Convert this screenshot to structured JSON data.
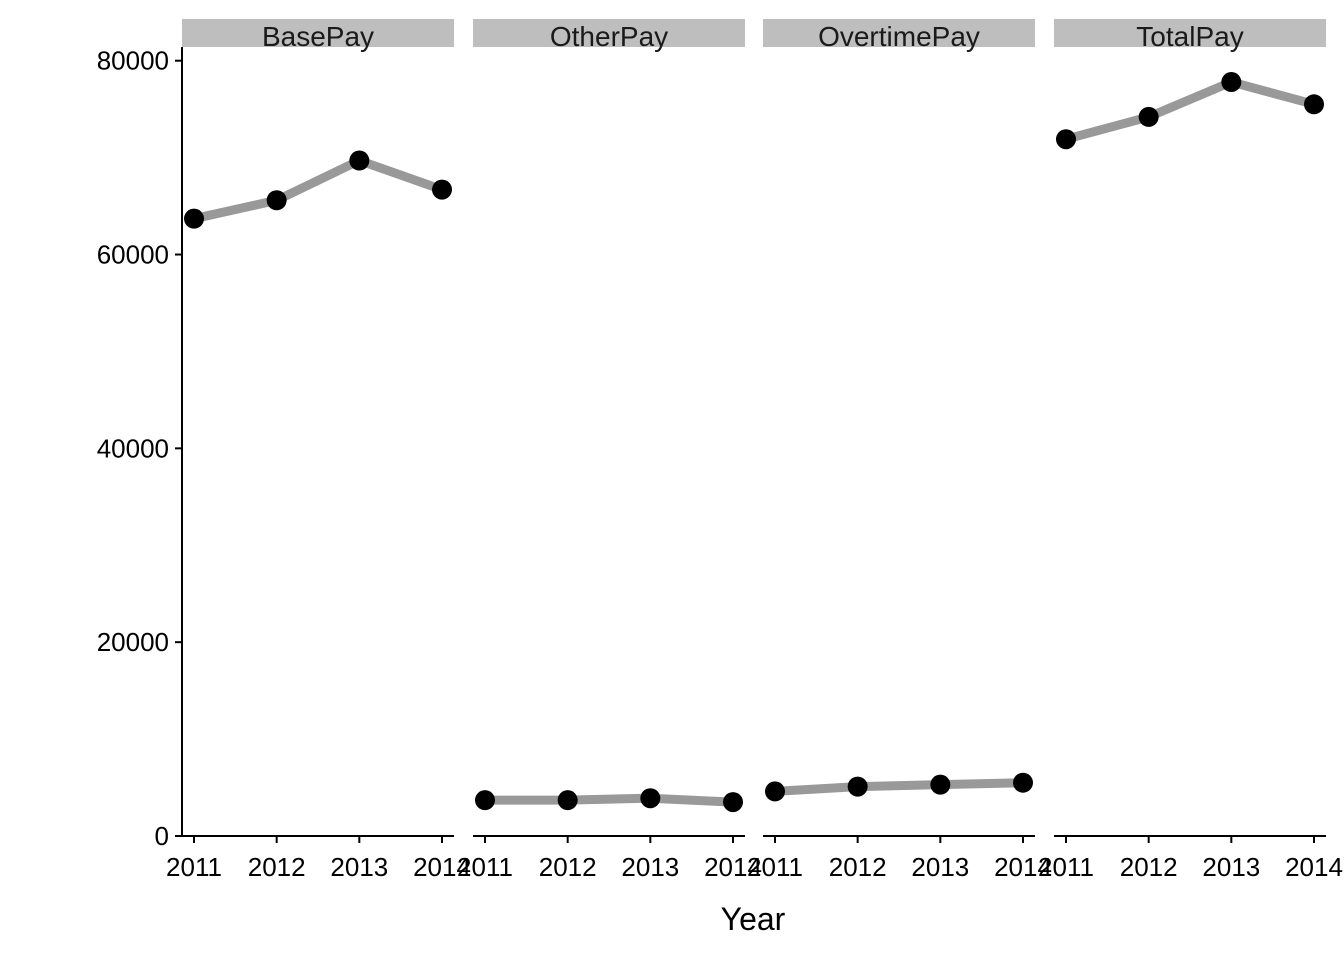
{
  "chart_data": {
    "type": "line",
    "title": "",
    "xlabel": "Year",
    "ylabel": "",
    "ylim": [
      0,
      80000
    ],
    "y_ticks": [
      0,
      20000,
      40000,
      60000,
      80000
    ],
    "y_tick_labels": [
      "0",
      "20000",
      "40000",
      "60000",
      "80000"
    ],
    "x": [
      2011,
      2012,
      2013,
      2014
    ],
    "x_tick_labels": [
      "2011",
      "2012",
      "2013",
      "2014"
    ],
    "grid": false,
    "legend": "none",
    "facets": [
      {
        "label": "BasePay",
        "values": [
          63700,
          65600,
          69700,
          66700
        ]
      },
      {
        "label": "OtherPay",
        "values": [
          3700,
          3700,
          3900,
          3500
        ]
      },
      {
        "label": "OvertimePay",
        "values": [
          4600,
          5100,
          5300,
          5500
        ]
      },
      {
        "label": "TotalPay",
        "values": [
          71900,
          74200,
          77800,
          75500
        ]
      }
    ],
    "colors": {
      "line": "#999999",
      "point": "#000000",
      "strip": "#bebebe"
    }
  }
}
